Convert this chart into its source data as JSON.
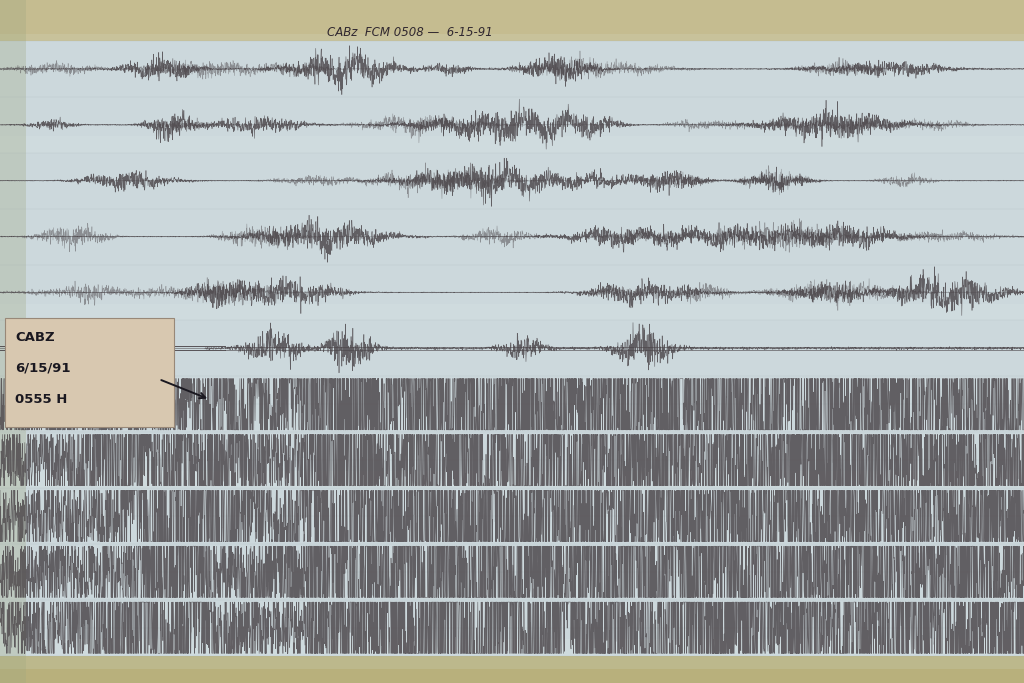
{
  "bg_color_outer": "#b8b090",
  "bg_color_paper": "#ccd8d8",
  "bg_color_top_strip": "#c8c090",
  "bg_color_bottom_strip": "#c0b880",
  "label_box_color": "#d8c8b0",
  "label_text": [
    "CABZ",
    "6/15/91",
    "0555 H"
  ],
  "top_annotation": "CABz  FCM 0508 —  6-15-91",
  "n_rows": 11,
  "fig_width": 10.24,
  "fig_height": 6.83,
  "text_color": "#2a2428",
  "line_color": "#4a4448",
  "note_bg": "#d4c8b0",
  "paper_bg": "#d0dce0",
  "paper_light": "#dce8ec",
  "paper_dark": "#c0ccd0"
}
